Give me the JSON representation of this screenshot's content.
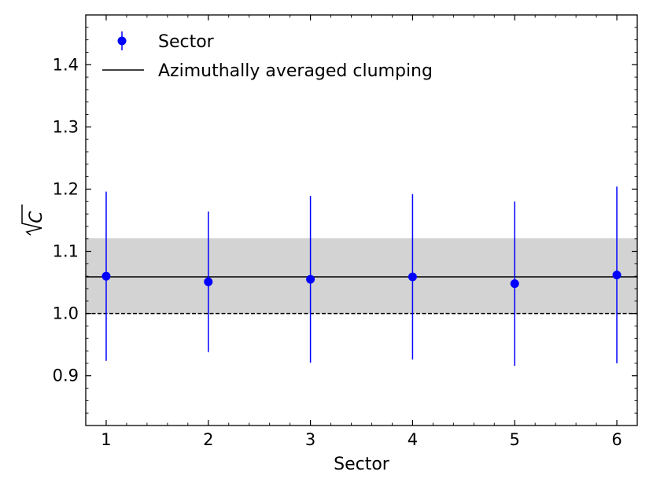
{
  "chart_data": {
    "type": "scatter",
    "title": "",
    "xlabel": "Sector",
    "ylabel_base": "C",
    "xlim": [
      0.8,
      6.2
    ],
    "ylim": [
      0.82,
      1.48
    ],
    "x_ticks": [
      1,
      2,
      3,
      4,
      5,
      6
    ],
    "y_ticks": [
      0.9,
      1.0,
      1.1,
      1.2,
      1.3,
      1.4
    ],
    "y_tick_labels": [
      "0.9",
      "1.0",
      "1.1",
      "1.2",
      "1.3",
      "1.4"
    ],
    "x_tick_labels": [
      "1",
      "2",
      "3",
      "4",
      "5",
      "6"
    ],
    "grid": false,
    "legend_position": "top-left",
    "colors": {
      "points": "#0000ff",
      "mean_line": "#000000",
      "band": "#d3d3d3",
      "reference_line": "#000000"
    },
    "series": [
      {
        "name": "Sector",
        "kind": "errorbar",
        "points": [
          {
            "x": 1,
            "y": 1.06,
            "y_low": 0.924,
            "y_high": 1.196
          },
          {
            "x": 2,
            "y": 1.051,
            "y_low": 0.938,
            "y_high": 1.164
          },
          {
            "x": 3,
            "y": 1.055,
            "y_low": 0.921,
            "y_high": 1.189
          },
          {
            "x": 4,
            "y": 1.059,
            "y_low": 0.926,
            "y_high": 1.192
          },
          {
            "x": 5,
            "y": 1.048,
            "y_low": 0.916,
            "y_high": 1.18
          },
          {
            "x": 6,
            "y": 1.062,
            "y_low": 0.92,
            "y_high": 1.204
          }
        ]
      },
      {
        "name": "Azimuthally averaged clumping",
        "kind": "hline",
        "y": 1.059,
        "band": [
          1.0,
          1.121
        ]
      }
    ],
    "reference_line": {
      "y": 1.0,
      "style": "dashed"
    }
  }
}
